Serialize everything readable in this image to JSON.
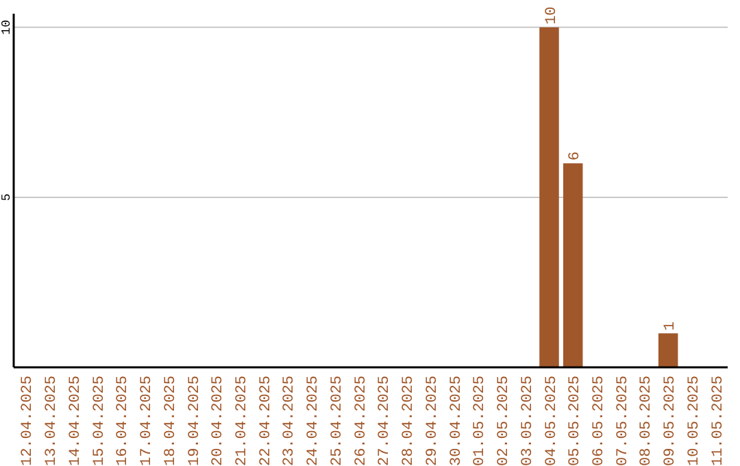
{
  "chart_data": {
    "type": "bar",
    "categories": [
      "12.04.2025",
      "13.04.2025",
      "14.04.2025",
      "15.04.2025",
      "16.04.2025",
      "17.04.2025",
      "18.04.2025",
      "19.04.2025",
      "20.04.2025",
      "21.04.2025",
      "22.04.2025",
      "23.04.2025",
      "24.04.2025",
      "25.04.2025",
      "26.04.2025",
      "27.04.2025",
      "28.04.2025",
      "29.04.2025",
      "30.04.2025",
      "01.05.2025",
      "02.05.2025",
      "03.05.2025",
      "04.05.2025",
      "05.05.2025",
      "06.05.2025",
      "07.05.2025",
      "08.05.2025",
      "09.05.2025",
      "10.05.2025",
      "11.05.2025"
    ],
    "values": [
      0,
      0,
      0,
      0,
      0,
      0,
      0,
      0,
      0,
      0,
      0,
      0,
      0,
      0,
      0,
      0,
      0,
      0,
      0,
      0,
      0,
      0,
      10,
      6,
      0,
      0,
      0,
      1,
      0,
      0
    ],
    "value_labels": [
      null,
      null,
      null,
      null,
      null,
      null,
      null,
      null,
      null,
      null,
      null,
      null,
      null,
      null,
      null,
      null,
      null,
      null,
      null,
      null,
      null,
      null,
      "10",
      "6",
      null,
      null,
      null,
      "1",
      null,
      null
    ],
    "color": "#a0572a",
    "ylim": [
      0,
      10.4
    ],
    "yticks": [
      5,
      10
    ],
    "grid": "y"
  }
}
